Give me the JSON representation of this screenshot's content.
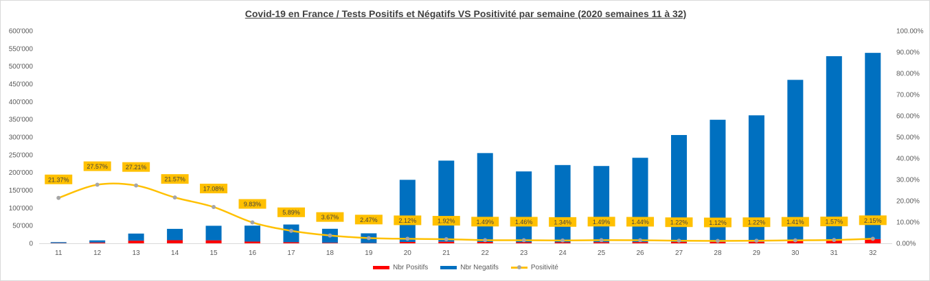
{
  "chart_data": {
    "type": "bar",
    "title": "Covid-19 en France /  Tests  Positifs et Négatifs VS Positivité par semaine (2020 semaines 11 à 32)",
    "categories": [
      "11",
      "12",
      "13",
      "14",
      "15",
      "16",
      "17",
      "18",
      "19",
      "20",
      "21",
      "22",
      "23",
      "24",
      "25",
      "26",
      "27",
      "28",
      "29",
      "30",
      "31",
      "32"
    ],
    "stacked": true,
    "series": [
      {
        "name": "Nbr Positifs",
        "color": "#ff0000",
        "axis": "left",
        "values": [
          700,
          2300,
          7500,
          8800,
          8500,
          4900,
          3100,
          1500,
          700,
          3800,
          4500,
          3800,
          3000,
          3000,
          3300,
          3500,
          3800,
          3900,
          4400,
          6600,
          8400,
          11800
        ]
      },
      {
        "name": "Nbr Negatifs",
        "color": "#0070c0",
        "axis": "left",
        "values": [
          2600,
          6000,
          20000,
          32000,
          41000,
          45000,
          50000,
          39500,
          27500,
          175500,
          229000,
          251000,
          200000,
          218000,
          215000,
          238000,
          302000,
          345000,
          357000,
          455000,
          520000,
          526000
        ]
      },
      {
        "name": "Positivité",
        "type": "line",
        "color": "#ffc000",
        "marker_color": "#a6a6a6",
        "axis": "right",
        "values": [
          21.37,
          27.57,
          27.21,
          21.57,
          17.08,
          9.83,
          5.89,
          3.67,
          2.47,
          2.12,
          1.92,
          1.49,
          1.46,
          1.34,
          1.49,
          1.44,
          1.22,
          1.12,
          1.22,
          1.41,
          1.57,
          2.15
        ],
        "labels": [
          "21.37%",
          "27.57%",
          "27.21%",
          "21.57%",
          "17.08%",
          "9.83%",
          "5.89%",
          "3.67%",
          "2.47%",
          "2.12%",
          "1.92%",
          "1.49%",
          "1.46%",
          "1.34%",
          "1.49%",
          "1.44%",
          "1.22%",
          "1.12%",
          "1.22%",
          "1.41%",
          "1.57%",
          "2.15%"
        ]
      }
    ],
    "y_left": {
      "ylim": [
        0,
        600000
      ],
      "ticks": [
        0,
        50000,
        100000,
        150000,
        200000,
        250000,
        300000,
        350000,
        400000,
        450000,
        500000,
        550000,
        600000
      ],
      "tick_labels": [
        "0",
        "50'000",
        "100'000",
        "150'000",
        "200'000",
        "250'000",
        "300'000",
        "350'000",
        "400'000",
        "450'000",
        "500'000",
        "550'000",
        "600'000"
      ]
    },
    "y_right": {
      "ylim": [
        0,
        100
      ],
      "ticks": [
        0,
        10,
        20,
        30,
        40,
        50,
        60,
        70,
        80,
        90,
        100
      ],
      "tick_labels": [
        "0.00%",
        "10.00%",
        "20.00%",
        "30.00%",
        "40.00%",
        "50.00%",
        "60.00%",
        "70.00%",
        "80.00%",
        "90.00%",
        "100.00%"
      ]
    },
    "grid": false,
    "legend_position": "bottom",
    "label_box_color": "#ffc000"
  }
}
